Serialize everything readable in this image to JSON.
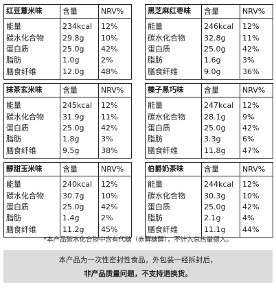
{
  "headers": {
    "amount": "含量",
    "nrv": "NRV%"
  },
  "nutrient_names": [
    "能量",
    "碳水化合物",
    "蛋白质",
    "脂肪",
    "膳食纤维"
  ],
  "panels": [
    {
      "flavor": "红豆薏米味",
      "rows": [
        {
          "amount": "234kcal",
          "nrv": "12%"
        },
        {
          "amount": "29.8g",
          "nrv": "10%"
        },
        {
          "amount": "25.0g",
          "nrv": "42%"
        },
        {
          "amount": "1.0g",
          "nrv": "2%"
        },
        {
          "amount": "12.0g",
          "nrv": "48%"
        }
      ]
    },
    {
      "flavor": "黑芝麻红枣味",
      "rows": [
        {
          "amount": "246kcal",
          "nrv": "12%"
        },
        {
          "amount": "32.8g",
          "nrv": "11%"
        },
        {
          "amount": "25.0g",
          "nrv": "42%"
        },
        {
          "amount": "1.6g",
          "nrv": "3%"
        },
        {
          "amount": "9.0g",
          "nrv": "36%"
        }
      ]
    },
    {
      "flavor": "抹茶玄米味",
      "rows": [
        {
          "amount": "245kcal",
          "nrv": "12%"
        },
        {
          "amount": "31.9g",
          "nrv": "11%"
        },
        {
          "amount": "25.0g",
          "nrv": "42%"
        },
        {
          "amount": "1.8g",
          "nrv": "3%"
        },
        {
          "amount": "9.5g",
          "nrv": "38%"
        }
      ]
    },
    {
      "flavor": "榛子黑巧味",
      "rows": [
        {
          "amount": "247kcal",
          "nrv": "12%"
        },
        {
          "amount": "28.1g",
          "nrv": "9%"
        },
        {
          "amount": "25.0g",
          "nrv": "42%"
        },
        {
          "amount": "3.3g",
          "nrv": "6%"
        },
        {
          "amount": "11.8g",
          "nrv": "47%"
        }
      ]
    },
    {
      "flavor": "醇甜玉米味",
      "rows": [
        {
          "amount": "240kcal",
          "nrv": "12%"
        },
        {
          "amount": "30.7g",
          "nrv": "10%"
        },
        {
          "amount": "25.0g",
          "nrv": "42%"
        },
        {
          "amount": "1.4g",
          "nrv": "2%"
        },
        {
          "amount": "11.2g",
          "nrv": "45%"
        }
      ]
    },
    {
      "flavor": "伯爵奶茶味",
      "rows": [
        {
          "amount": "244kcal",
          "nrv": "12%"
        },
        {
          "amount": "30.3g",
          "nrv": "10%"
        },
        {
          "amount": "25.0g",
          "nrv": "42%"
        },
        {
          "amount": "2.1g",
          "nrv": "4%"
        },
        {
          "amount": "11.1g",
          "nrv": "44%"
        }
      ]
    }
  ],
  "footnote": "*本产品碳水化合物中含有代糖（赤藓糖醇），不计入总热量摄入。",
  "notice": {
    "line1": "本产品为一次性密封性食品，外包装一经拆封后，",
    "line2": "非产品质量问题，不支持退换货。"
  }
}
